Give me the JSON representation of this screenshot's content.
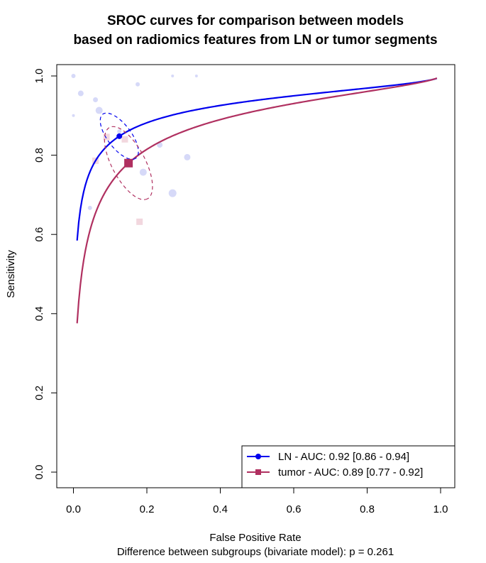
{
  "chart_data": {
    "type": "scatter",
    "title_line1": "SROC curves for comparison between models",
    "title_line2": "based on radiomics features from LN or tumor segments",
    "xlabel": "False Positive Rate",
    "ylabel": "Sensitivity",
    "footnote": "Difference between subgroups (bivariate model): p = 0.261",
    "xlim": [
      0.0,
      1.0
    ],
    "ylim": [
      0.0,
      1.0
    ],
    "x_ticks": [
      "0.0",
      "0.2",
      "0.4",
      "0.6",
      "0.8",
      "1.0"
    ],
    "y_ticks": [
      "0.0",
      "0.2",
      "0.4",
      "0.6",
      "0.8",
      "1.0"
    ],
    "grid": false,
    "legend_position": "bottom-right",
    "series": [
      {
        "name": "LN - AUC: 0.92 [0.86 - 0.94]",
        "color": "#0000ee",
        "marker": "circle",
        "summary_point": [
          0.125,
          0.848
        ],
        "curve_range": [
          0.01,
          0.99
        ],
        "ellipse": {
          "center": [
            0.125,
            0.848
          ],
          "rx": 0.075,
          "ry": 0.03,
          "angle_deg": -53
        },
        "studies": [
          {
            "x": 0.0,
            "y": 1.0
          },
          {
            "x": 0.0,
            "y": 0.9
          },
          {
            "x": 0.02,
            "y": 0.956
          },
          {
            "x": 0.06,
            "y": 0.94
          },
          {
            "x": 0.07,
            "y": 0.913
          },
          {
            "x": 0.125,
            "y": 0.86
          },
          {
            "x": 0.175,
            "y": 0.979
          },
          {
            "x": 0.19,
            "y": 0.757
          },
          {
            "x": 0.235,
            "y": 0.826
          },
          {
            "x": 0.27,
            "y": 0.704
          },
          {
            "x": 0.31,
            "y": 0.795
          },
          {
            "x": 0.335,
            "y": 1.0
          },
          {
            "x": 0.27,
            "y": 1.0
          },
          {
            "x": 0.045,
            "y": 0.667
          }
        ]
      },
      {
        "name": "tumor - AUC: 0.89 [0.77 - 0.92]",
        "color": "#b03060",
        "marker": "square",
        "summary_point": [
          0.15,
          0.78
        ],
        "curve_range": [
          0.01,
          0.99
        ],
        "ellipse": {
          "center": [
            0.15,
            0.78
          ],
          "rx": 0.11,
          "ry": 0.042,
          "angle_deg": -62
        },
        "studies": [
          {
            "x": 0.06,
            "y": 0.786
          },
          {
            "x": 0.09,
            "y": 0.846
          },
          {
            "x": 0.14,
            "y": 0.84
          },
          {
            "x": 0.18,
            "y": 0.632
          }
        ]
      }
    ]
  }
}
